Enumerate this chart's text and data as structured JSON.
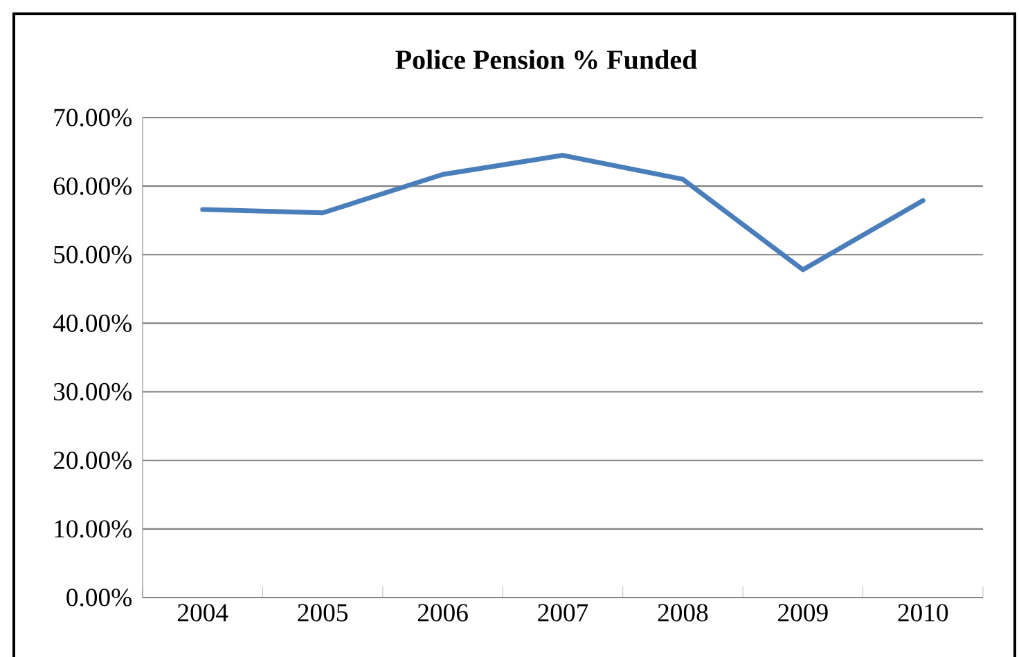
{
  "chart_data": {
    "type": "line",
    "title": "Police Pension % Funded",
    "categories": [
      "2004",
      "2005",
      "2006",
      "2007",
      "2008",
      "2009",
      "2010"
    ],
    "series": [
      {
        "color": "#4a7ebb",
        "values": [
          56.6,
          56.1,
          61.7,
          64.5,
          61.0,
          47.8,
          57.9
        ]
      }
    ],
    "ylim": [
      0,
      70
    ],
    "yticks": [
      {
        "value": 0,
        "label": "0.00%"
      },
      {
        "value": 10,
        "label": "10.00%"
      },
      {
        "value": 20,
        "label": "20.00%"
      },
      {
        "value": 30,
        "label": "30.00%"
      },
      {
        "value": 40,
        "label": "40.00%"
      },
      {
        "value": 50,
        "label": "50.00%"
      },
      {
        "value": 60,
        "label": "60.00%"
      },
      {
        "value": 70,
        "label": "70.00%"
      }
    ],
    "grid": "y",
    "marker": "none",
    "line_style": "solid"
  }
}
